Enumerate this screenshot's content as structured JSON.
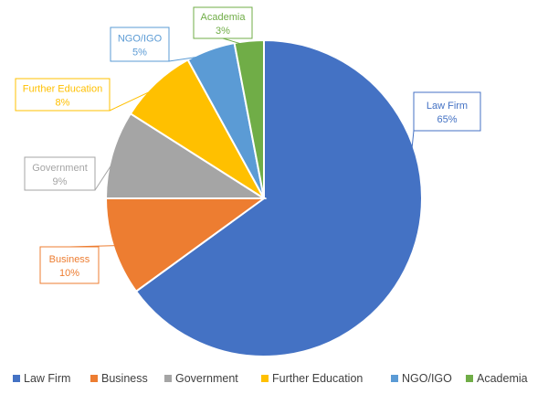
{
  "chart_data": {
    "type": "pie",
    "title": "",
    "categories": [
      "Law Firm",
      "Business",
      "Government",
      "Further Education",
      "NGO/IGO",
      "Academia"
    ],
    "values": [
      65,
      10,
      9,
      8,
      5,
      3
    ],
    "labels": [
      "65%",
      "10%",
      "9%",
      "8%",
      "5%",
      "3%"
    ],
    "colors": [
      "#4472C4",
      "#ED7D31",
      "#A5A5A5",
      "#FFC000",
      "#5B9BD5",
      "#70AD47"
    ],
    "start_angle_deg": 0,
    "direction": "clockwise",
    "legend_position": "bottom",
    "data_labels": "callouts"
  }
}
